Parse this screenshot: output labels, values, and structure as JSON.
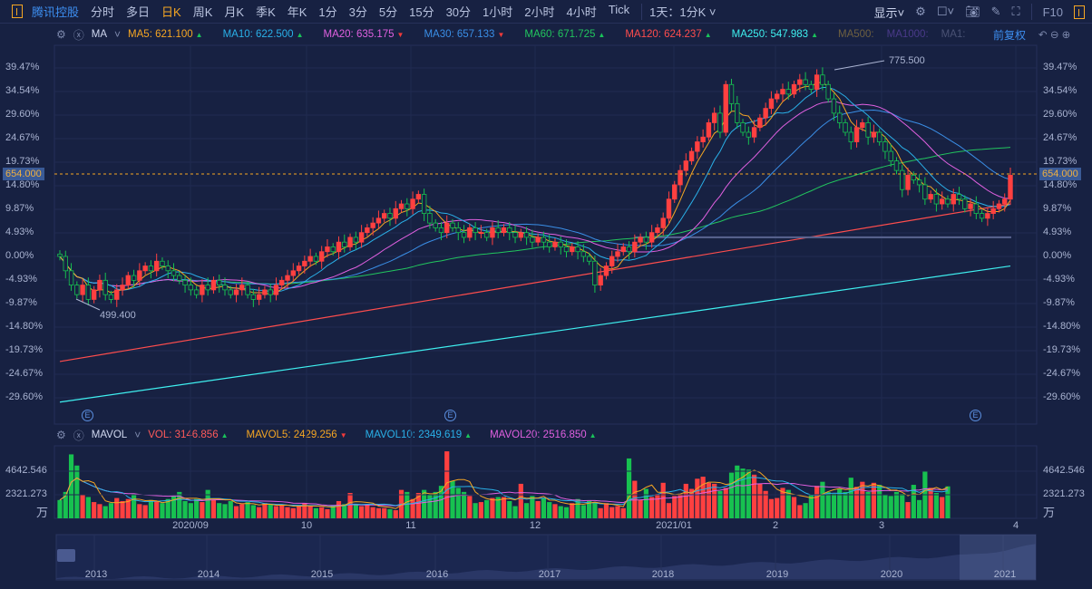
{
  "toolbar": {
    "stock_name": "腾讯控股",
    "tabs": [
      "分时",
      "多日",
      "日K",
      "周K",
      "月K",
      "季K",
      "年K",
      "1分",
      "3分",
      "5分",
      "15分",
      "30分",
      "1小时",
      "2小时",
      "4小时",
      "Tick"
    ],
    "active_tab": "日K",
    "period_select": "1天：1分K",
    "display": "显示",
    "f10": "F10"
  },
  "ma_legend": {
    "indicator": "MA",
    "items": [
      {
        "label": "MA5: 621.100",
        "color": "#f5a623",
        "trend": "up"
      },
      {
        "label": "MA10: 622.500",
        "color": "#2ab0e8",
        "trend": "up"
      },
      {
        "label": "MA20: 635.175",
        "color": "#e060e0",
        "trend": "down"
      },
      {
        "label": "MA30: 657.133",
        "color": "#3a8ee6",
        "trend": "down"
      },
      {
        "label": "MA60: 671.725",
        "color": "#22c55e",
        "trend": "up"
      },
      {
        "label": "MA120: 624.237",
        "color": "#ff4d4d",
        "trend": "up"
      },
      {
        "label": "MA250: 547.983",
        "color": "#3ff0f0",
        "trend": "up"
      },
      {
        "label": "MA500:",
        "color": "#6e6040",
        "trend": ""
      },
      {
        "label": "MA1000:",
        "color": "#4a3a8a",
        "trend": ""
      },
      {
        "label": "MA1:",
        "color": "#4a5274",
        "trend": ""
      }
    ],
    "adjust": "前复权"
  },
  "vol_legend": {
    "indicator": "MAVOL",
    "items": [
      {
        "label": "VOL: 3146.856",
        "color": "#ff5a5a",
        "trend": "up"
      },
      {
        "label": "MAVOL5: 2429.256",
        "color": "#f5a623",
        "trend": "down"
      },
      {
        "label": "MAVOL10: 2349.619",
        "color": "#2ab0e8",
        "trend": "up"
      },
      {
        "label": "MAVOL20: 2516.850",
        "color": "#e060e0",
        "trend": "up"
      }
    ]
  },
  "chart_data": {
    "type": "candlestick",
    "y_ticks_pct": [
      "39.47%",
      "34.54%",
      "29.60%",
      "24.67%",
      "19.73%",
      "14.80%",
      "9.87%",
      "4.93%",
      "0.00%",
      "-4.93%",
      "-9.87%",
      "-14.80%",
      "-19.73%",
      "-24.67%",
      "-29.60%"
    ],
    "current_price": "654.000",
    "high_label": "775.500",
    "low_label": "499.400",
    "close_pct": [
      0,
      -3,
      -6,
      -8,
      -6,
      -9,
      -7,
      -5,
      -8,
      -9,
      -7,
      -6,
      -4,
      -5,
      -3,
      -2,
      -3,
      -1,
      -2,
      -3,
      -4,
      -5,
      -6,
      -7,
      -8,
      -6,
      -7,
      -5,
      -6,
      -7,
      -8,
      -7,
      -6,
      -8,
      -9,
      -8,
      -7,
      -8,
      -6,
      -5,
      -4,
      -3,
      -2,
      -1,
      0,
      -1,
      1,
      2,
      1,
      3,
      2,
      4,
      3,
      5,
      6,
      7,
      8,
      9,
      8,
      10,
      11,
      10,
      12,
      13,
      9,
      7,
      6,
      5,
      7,
      6,
      5,
      4,
      6,
      5,
      5,
      4,
      6,
      5,
      6,
      5,
      4,
      5,
      4,
      3,
      4,
      3,
      2,
      3,
      2,
      1,
      2,
      1,
      0,
      -1,
      -6,
      -4,
      -2,
      0,
      1,
      2,
      1,
      3,
      4,
      3,
      5,
      6,
      8,
      12,
      15,
      18,
      20,
      22,
      24,
      25,
      28,
      30,
      26,
      36,
      32,
      28,
      26,
      25,
      27,
      29,
      31,
      33,
      34,
      35,
      34,
      36,
      37,
      36,
      35,
      38,
      36,
      33,
      30,
      28,
      26,
      24,
      27,
      28,
      25,
      26,
      24,
      22,
      20,
      18,
      14,
      17,
      16,
      15,
      12,
      13,
      11,
      12,
      11,
      13,
      12,
      10,
      11,
      9,
      8,
      9,
      10,
      11,
      12,
      17
    ],
    "volume": [
      1800,
      2600,
      6300,
      5200,
      2300,
      2100,
      1600,
      1400,
      1200,
      1500,
      2000,
      1700,
      1900,
      2400,
      1400,
      1300,
      1800,
      1700,
      1500,
      1900,
      2200,
      2600,
      1700,
      1500,
      1900,
      1600,
      2800,
      1800,
      1500,
      1400,
      1700,
      1200,
      1400,
      1600,
      1300,
      1100,
      1500,
      1400,
      1200,
      1300,
      1100,
      1000,
      1300,
      1500,
      1200,
      1000,
      1100,
      900,
      1300,
      1700,
      1400,
      2500,
      1300,
      1200,
      1400,
      1100,
      1000,
      1000,
      900,
      800,
      2800,
      2600,
      1900,
      2500,
      2800,
      2300,
      2600,
      3200,
      6600,
      3700,
      3000,
      2600,
      2200,
      1500,
      1600,
      1800,
      2000,
      2100,
      2100,
      1700,
      1200,
      3400,
      1500,
      2200,
      1700,
      2000,
      1600,
      1400,
      1200,
      1100,
      1500,
      1900,
      1300,
      1700,
      1600,
      1000,
      1500,
      1100,
      1200,
      1000,
      5900,
      3700,
      1800,
      2900,
      2100,
      2400,
      3500,
      1500,
      2200,
      2400,
      3400,
      2900,
      3900,
      4100,
      3500,
      3400,
      2700,
      3000,
      4500,
      5200,
      4900,
      4800,
      4300,
      3400,
      2700,
      1900,
      2000,
      3000,
      2800,
      2100,
      1300,
      1500,
      2300,
      3200,
      3600,
      2600,
      2400,
      2900,
      2600,
      4000,
      3100,
      3600,
      2600,
      3500,
      3300,
      2300,
      2200,
      2600,
      2400,
      1600,
      3300,
      1800,
      4600,
      3000,
      2500,
      2100,
      3150
    ],
    "vol_ticks": [
      "4642.546",
      "2321.273"
    ],
    "vol_unit": "万",
    "ma120_range_pct": [
      -22,
      11
    ],
    "ma250_range_pct": [
      -30.5,
      -2
    ],
    "support_line_pct": 4,
    "x_labels": [
      "2020/09",
      "10",
      "11",
      "12",
      "2021/01",
      "2",
      "3",
      "4"
    ],
    "event_marker": "E",
    "colors": {
      "up": "#ff4040",
      "down": "#17c150",
      "ma5": "#f5a623",
      "ma10": "#2ab0e8",
      "ma20": "#e060e0",
      "ma30": "#3a8ee6",
      "ma60": "#22c55e",
      "ma120": "#ff4d4d",
      "ma250": "#3ff0f0"
    }
  },
  "navigator": {
    "years": [
      "2013",
      "2014",
      "2015",
      "2016",
      "2017",
      "2018",
      "2019",
      "2020",
      "2021"
    ]
  }
}
